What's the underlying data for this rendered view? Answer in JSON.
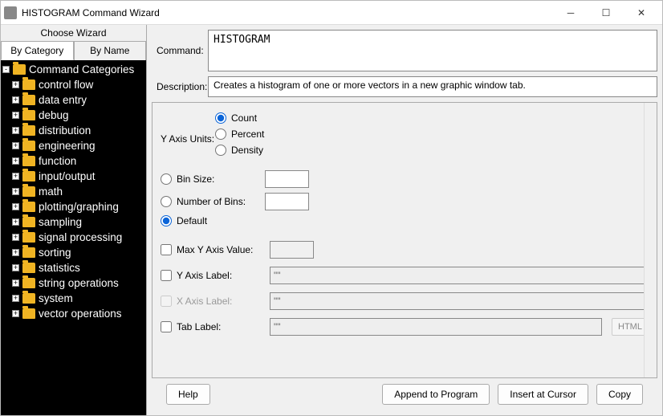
{
  "window": {
    "title": "HISTOGRAM Command Wizard"
  },
  "sidebar": {
    "header": "Choose Wizard",
    "tabs": {
      "by_category": "By Category",
      "by_name": "By Name"
    },
    "root": "Command Categories",
    "items": [
      "control flow",
      "data entry",
      "debug",
      "distribution",
      "engineering",
      "function",
      "input/output",
      "math",
      "plotting/graphing",
      "sampling",
      "signal processing",
      "sorting",
      "statistics",
      "string operations",
      "system",
      "vector operations"
    ]
  },
  "fields": {
    "command_label": "Command:",
    "command_value": "HISTOGRAM",
    "description_label": "Description:",
    "description_value": "Creates a histogram of one or more vectors in a new graphic window tab."
  },
  "options": {
    "y_axis_units_label": "Y Axis Units:",
    "y_axis_units": {
      "count": "Count",
      "percent": "Percent",
      "density": "Density",
      "selected": "count"
    },
    "bin": {
      "bin_size": "Bin Size:",
      "num_bins": "Number of Bins:",
      "default": "Default",
      "selected": "default"
    },
    "max_y": "Max Y Axis Value:",
    "y_label": "Y Axis Label:",
    "x_label": "X Axis Label:",
    "tab_label": "Tab Label:",
    "placeholder_quotes": "\"\"",
    "html_btn": "HTML"
  },
  "buttons": {
    "help": "Help",
    "append": "Append to Program",
    "insert": "Insert at Cursor",
    "copy": "Copy"
  }
}
